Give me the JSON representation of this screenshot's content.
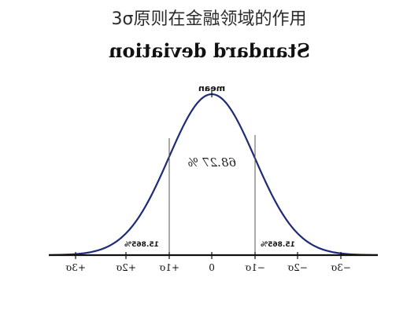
{
  "header": {
    "title": "3σ原则在金融领域的作用"
  },
  "figure": {
    "title": "Standard deviation",
    "mean_label": "mean",
    "center_percent": "68.27 %",
    "left_tail_percent": "15.865%",
    "right_tail_percent": "15.865%",
    "tick_labels": [
      "+3σ",
      "+2σ",
      "+1σ",
      "0",
      "−1σ",
      "−2σ",
      "−3σ"
    ],
    "mirrored": true
  },
  "colors": {
    "curve": "#1f2a78",
    "axis": "#111111",
    "divider": "#555555"
  }
}
